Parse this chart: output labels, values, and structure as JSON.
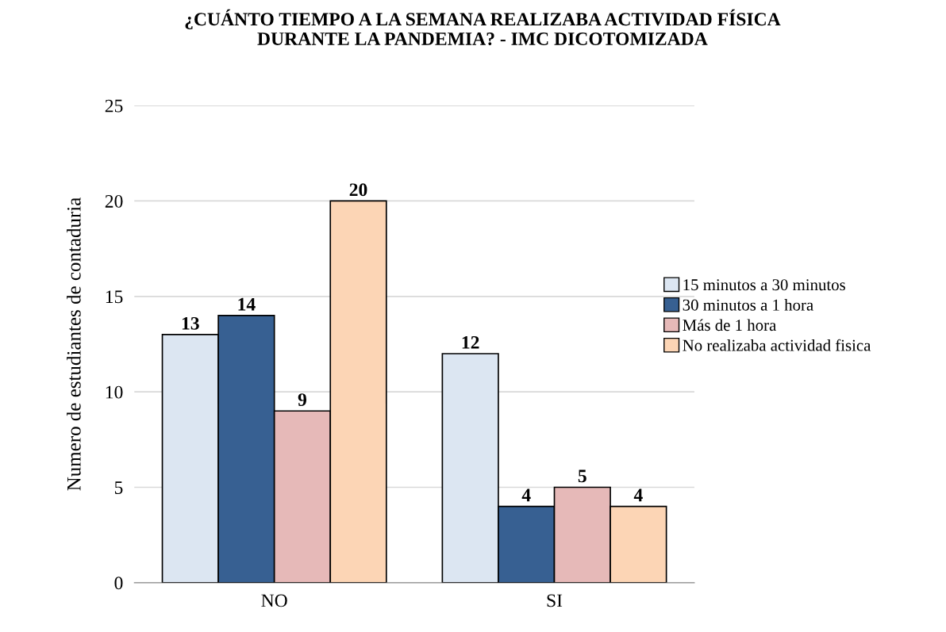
{
  "chart_data": {
    "type": "bar",
    "title": "¿CUÁNTO TIEMPO A LA SEMANA REALIZABA ACTIVIDAD FÍSICA\nDURANTE LA PANDEMIA? - IMC DICOTOMIZADA",
    "ylabel": "Numero de estudiantes de contaduria",
    "categories": [
      "NO",
      "SI"
    ],
    "series": [
      {
        "name": "15 minutos a 30 minutos",
        "color": "#dce6f2",
        "values": [
          13,
          12
        ]
      },
      {
        "name": "30 minutos a 1 hora",
        "color": "#376092",
        "values": [
          14,
          4
        ]
      },
      {
        "name": "Más de 1 hora",
        "color": "#e6b9b8",
        "values": [
          9,
          5
        ]
      },
      {
        "name": "No realizaba actividad fisica",
        "color": "#fcd5b5",
        "values": [
          20,
          4
        ]
      }
    ],
    "ylim": [
      0,
      25
    ],
    "yticks": [
      0,
      5,
      10,
      15,
      20,
      25
    ],
    "grid": "y",
    "legend": "right",
    "data_labels": true
  }
}
